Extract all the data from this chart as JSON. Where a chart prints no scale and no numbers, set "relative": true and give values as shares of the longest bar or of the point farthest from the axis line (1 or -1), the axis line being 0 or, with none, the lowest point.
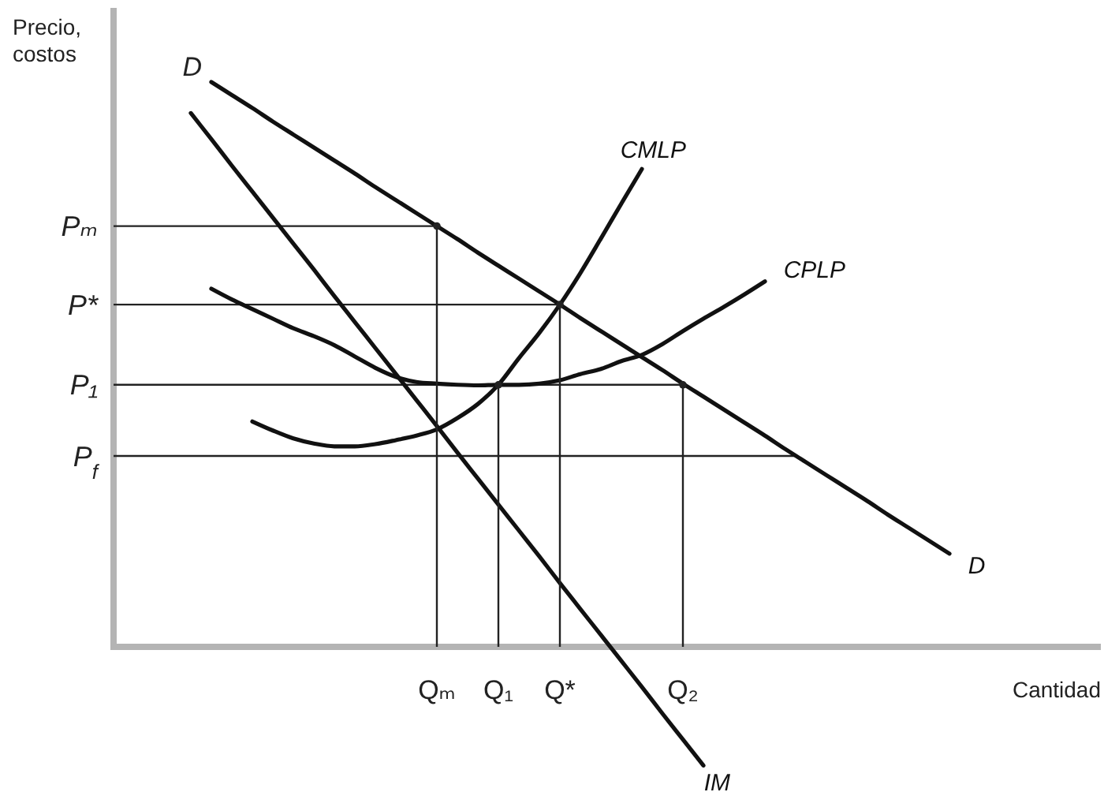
{
  "chart_data": {
    "type": "line",
    "relative": true,
    "ylabel": "Precio,\ncostos",
    "xlabel": "Cantidad",
    "categories": [
      null,
      null,
      null,
      null,
      null,
      null,
      null,
      null,
      null,
      null,
      null,
      null,
      "Qₘ",
      null,
      null,
      "Q₁",
      null,
      null,
      "Q*",
      null,
      null,
      null,
      null,
      null,
      "Q₂",
      null,
      null,
      null,
      null,
      null,
      null,
      null,
      null,
      null,
      null,
      null,
      null,
      null
    ],
    "series": [
      {
        "name": "D",
        "color": "#111111",
        "values": [
          null,
          1.0,
          0.977,
          0.954,
          0.93,
          0.907,
          0.884,
          0.861,
          0.838,
          0.814,
          0.791,
          0.768,
          0.745,
          0.722,
          0.698,
          0.675,
          0.652,
          0.629,
          0.606,
          0.582,
          0.559,
          0.536,
          0.513,
          0.49,
          0.466,
          0.443,
          0.42,
          0.397,
          0.374,
          0.35,
          0.327,
          0.304,
          0.281,
          0.258,
          0.234,
          0.211,
          0.188,
          0.165
        ]
      },
      {
        "name": "IM",
        "color": "#111111",
        "values": [
          0.945,
          0.899,
          0.852,
          0.806,
          0.76,
          0.714,
          0.668,
          0.621,
          0.575,
          0.529,
          0.483,
          0.437,
          0.391,
          0.344,
          0.298,
          0.252,
          0.206,
          0.16,
          0.113,
          0.067,
          0.021,
          -0.025,
          -0.071,
          -0.118,
          -0.164,
          -0.21,
          null,
          null,
          null,
          null,
          null,
          null,
          null,
          null,
          null,
          null,
          null,
          null
        ]
      },
      {
        "name": "CMLP",
        "color": "#111111",
        "values": [
          null,
          null,
          null,
          0.399,
          0.383,
          0.369,
          0.36,
          0.355,
          0.355,
          0.359,
          0.366,
          0.374,
          0.385,
          0.405,
          0.43,
          0.464,
          0.511,
          0.556,
          0.606,
          0.662,
          0.723,
          0.785,
          0.846,
          null,
          null,
          null,
          null,
          null,
          null,
          null,
          null,
          null,
          null,
          null,
          null,
          null,
          null,
          null
        ]
      },
      {
        "name": "CPLP",
        "color": "#111111",
        "values": [
          null,
          0.634,
          0.615,
          0.598,
          0.581,
          0.564,
          0.55,
          0.534,
          0.514,
          0.494,
          0.478,
          0.469,
          0.466,
          0.464,
          0.463,
          0.464,
          0.464,
          0.466,
          0.472,
          0.483,
          0.492,
          0.506,
          0.517,
          0.536,
          0.559,
          0.581,
          0.602,
          0.624,
          0.647,
          null,
          null,
          null,
          null,
          null,
          null,
          null,
          null,
          null
        ]
      },
      {
        "type": "lollipop",
        "marker": "circle",
        "color": "#222222",
        "values": [
          null,
          null,
          null,
          null,
          null,
          null,
          null,
          null,
          null,
          null,
          null,
          null,
          0.745,
          null,
          null,
          0.464,
          null,
          null,
          0.606,
          null,
          null,
          null,
          null,
          null,
          0.464,
          null,
          null,
          null,
          null,
          null,
          null,
          null,
          null,
          null,
          null,
          null,
          null,
          null
        ]
      }
    ],
    "ref_lines": [
      {
        "axis": "y",
        "value": 0.745,
        "label": "Pₘ",
        "color": "#222222"
      },
      {
        "axis": "y",
        "value": 0.606,
        "label": "P*",
        "color": "#222222"
      },
      {
        "axis": "y",
        "value": 0.464,
        "label": "P₁",
        "color": "#222222"
      },
      {
        "axis": "y",
        "value": 0.338,
        "label": "P$_{f}$",
        "color": "#222222"
      }
    ],
    "annotations": [
      "D"
    ]
  }
}
